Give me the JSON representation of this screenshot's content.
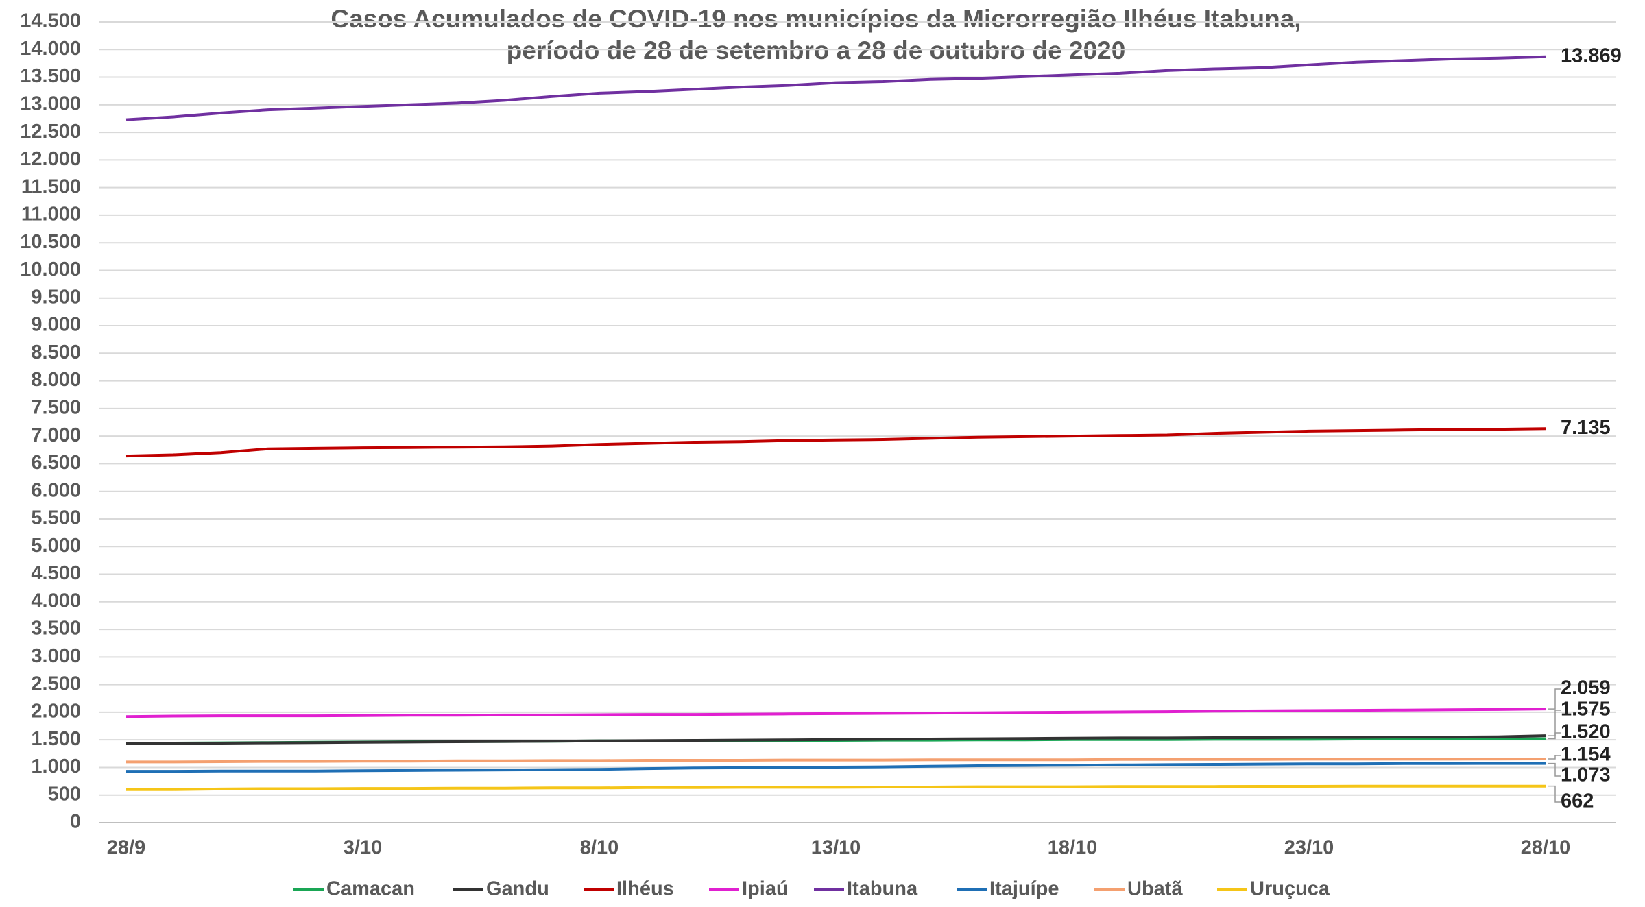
{
  "chart_data": {
    "type": "line",
    "title": "Casos Acumulados de COVID-19 nos municípios da Microrregião Ilhéus Itabuna,",
    "subtitle": "período de 28 de setembro a  28 de outubro de 2020",
    "categories": [
      "28/9",
      null,
      null,
      null,
      null,
      "3/10",
      null,
      null,
      null,
      null,
      "8/10",
      null,
      null,
      null,
      null,
      "13/10",
      null,
      null,
      null,
      null,
      "18/10",
      null,
      null,
      null,
      null,
      "23/10",
      null,
      null,
      null,
      null,
      "28/10"
    ],
    "ylim": [
      0,
      14500
    ],
    "yticks": [
      0,
      500,
      {
        "value": 1000,
        "label": "1.000"
      },
      {
        "value": 1500,
        "label": "1.500"
      },
      {
        "value": 2000,
        "label": "2.000"
      },
      {
        "value": 2500,
        "label": "2.500"
      },
      {
        "value": 3000,
        "label": "3.000"
      },
      {
        "value": 3500,
        "label": "3.500"
      },
      {
        "value": 4000,
        "label": "4.000"
      },
      {
        "value": 4500,
        "label": "4.500"
      },
      {
        "value": 5000,
        "label": "5.000"
      },
      {
        "value": 5500,
        "label": "5.500"
      },
      {
        "value": 6000,
        "label": "6.000"
      },
      {
        "value": 6500,
        "label": "6.500"
      },
      {
        "value": 7000,
        "label": "7.000"
      },
      {
        "value": 7500,
        "label": "7.500"
      },
      {
        "value": 8000,
        "label": "8.000"
      },
      {
        "value": 8500,
        "label": "8.500"
      },
      {
        "value": 9000,
        "label": "9.000"
      },
      {
        "value": 9500,
        "label": "9.500"
      },
      {
        "value": 10000,
        "label": "10.000"
      },
      {
        "value": 10500,
        "label": "10.500"
      },
      {
        "value": 11000,
        "label": "11.000"
      },
      {
        "value": 11500,
        "label": "11.500"
      },
      {
        "value": 12000,
        "label": "12.000"
      },
      {
        "value": 12500,
        "label": "12.500"
      },
      {
        "value": 13000,
        "label": "13.000"
      },
      {
        "value": 13500,
        "label": "13.500"
      },
      {
        "value": 14000,
        "label": "14.000"
      },
      {
        "value": 14500,
        "label": "14.500"
      }
    ],
    "grid": true,
    "legend": "bottom",
    "series": [
      {
        "name": "Camacan",
        "color": "#1aa655",
        "values": [
          1440,
          1440,
          1445,
          1450,
          1455,
          1460,
          1465,
          1470,
          1470,
          1475,
          1480,
          1480,
          1485,
          1485,
          1490,
          1490,
          1495,
          1495,
          1500,
          1500,
          1505,
          1505,
          1505,
          1510,
          1510,
          1510,
          1515,
          1515,
          1515,
          1518,
          1520
        ],
        "value_labels": [
          null,
          null,
          null,
          null,
          null,
          null,
          null,
          null,
          null,
          null,
          null,
          null,
          null,
          null,
          null,
          null,
          null,
          null,
          null,
          null,
          null,
          null,
          null,
          null,
          null,
          null,
          null,
          null,
          null,
          null,
          "1.520"
        ]
      },
      {
        "name": "Gandu",
        "color": "#333333",
        "values": [
          1430,
          1435,
          1440,
          1445,
          1450,
          1455,
          1460,
          1465,
          1470,
          1475,
          1480,
          1485,
          1490,
          1495,
          1500,
          1505,
          1510,
          1515,
          1520,
          1525,
          1530,
          1535,
          1535,
          1540,
          1540,
          1545,
          1545,
          1550,
          1550,
          1555,
          1575
        ],
        "value_labels": [
          null,
          null,
          null,
          null,
          null,
          null,
          null,
          null,
          null,
          null,
          null,
          null,
          null,
          null,
          null,
          null,
          null,
          null,
          null,
          null,
          null,
          null,
          null,
          null,
          null,
          null,
          null,
          null,
          null,
          null,
          "1.575"
        ]
      },
      {
        "name": "Ilhéus",
        "color": "#c00000",
        "values": [
          6640,
          6660,
          6700,
          6770,
          6780,
          6790,
          6795,
          6800,
          6805,
          6820,
          6850,
          6870,
          6890,
          6900,
          6920,
          6930,
          6940,
          6960,
          6980,
          6990,
          7000,
          7010,
          7020,
          7050,
          7070,
          7090,
          7100,
          7110,
          7120,
          7125,
          7135
        ],
        "value_labels": [
          null,
          null,
          null,
          null,
          null,
          null,
          null,
          null,
          null,
          null,
          null,
          null,
          null,
          null,
          null,
          null,
          null,
          null,
          null,
          null,
          null,
          null,
          null,
          null,
          null,
          null,
          null,
          null,
          null,
          null,
          "7.135"
        ]
      },
      {
        "name": "Ipiaú",
        "color": "#e020d0",
        "values": [
          1920,
          1930,
          1935,
          1935,
          1935,
          1940,
          1945,
          1945,
          1950,
          1950,
          1955,
          1960,
          1960,
          1965,
          1970,
          1975,
          1980,
          1985,
          1990,
          1995,
          2000,
          2005,
          2010,
          2020,
          2025,
          2030,
          2035,
          2040,
          2045,
          2050,
          2059
        ],
        "value_labels": [
          null,
          null,
          null,
          null,
          null,
          null,
          null,
          null,
          null,
          null,
          null,
          null,
          null,
          null,
          null,
          null,
          null,
          null,
          null,
          null,
          null,
          null,
          null,
          null,
          null,
          null,
          null,
          null,
          null,
          null,
          "2.059"
        ]
      },
      {
        "name": "Itabuna",
        "color": "#7030a0",
        "values": [
          12730,
          12780,
          12850,
          12910,
          12940,
          12970,
          13000,
          13030,
          13080,
          13150,
          13210,
          13240,
          13280,
          13320,
          13350,
          13400,
          13420,
          13460,
          13480,
          13510,
          13540,
          13570,
          13620,
          13650,
          13670,
          13720,
          13770,
          13800,
          13830,
          13845,
          13869
        ],
        "value_labels": [
          null,
          null,
          null,
          null,
          null,
          null,
          null,
          null,
          null,
          null,
          null,
          null,
          null,
          null,
          null,
          null,
          null,
          null,
          null,
          null,
          null,
          null,
          null,
          null,
          null,
          null,
          null,
          null,
          null,
          null,
          "13.869"
        ]
      },
      {
        "name": "Itajuípe",
        "color": "#1f6fb5",
        "values": [
          930,
          930,
          935,
          935,
          935,
          940,
          945,
          950,
          955,
          960,
          965,
          980,
          990,
          995,
          1000,
          1005,
          1010,
          1020,
          1030,
          1035,
          1040,
          1045,
          1050,
          1055,
          1060,
          1065,
          1065,
          1070,
          1070,
          1072,
          1073
        ],
        "value_labels": [
          null,
          null,
          null,
          null,
          null,
          null,
          null,
          null,
          null,
          null,
          null,
          null,
          null,
          null,
          null,
          null,
          null,
          null,
          null,
          null,
          null,
          null,
          null,
          null,
          null,
          null,
          null,
          null,
          null,
          null,
          "1.073"
        ]
      },
      {
        "name": "Ubatã",
        "color": "#f4a070",
        "values": [
          1100,
          1100,
          1105,
          1110,
          1110,
          1115,
          1115,
          1120,
          1120,
          1125,
          1125,
          1130,
          1130,
          1130,
          1135,
          1135,
          1135,
          1140,
          1140,
          1140,
          1140,
          1145,
          1145,
          1145,
          1145,
          1150,
          1150,
          1150,
          1150,
          1152,
          1154
        ],
        "value_labels": [
          null,
          null,
          null,
          null,
          null,
          null,
          null,
          null,
          null,
          null,
          null,
          null,
          null,
          null,
          null,
          null,
          null,
          null,
          null,
          null,
          null,
          null,
          null,
          null,
          null,
          null,
          null,
          null,
          null,
          null,
          "1.154"
        ]
      },
      {
        "name": "Uruçuca",
        "color": "#f5c518",
        "values": [
          600,
          600,
          610,
          615,
          615,
          620,
          620,
          625,
          625,
          630,
          630,
          635,
          635,
          640,
          640,
          640,
          645,
          645,
          650,
          650,
          650,
          655,
          655,
          655,
          658,
          658,
          660,
          660,
          660,
          661,
          662
        ],
        "value_labels": [
          null,
          null,
          null,
          null,
          null,
          null,
          null,
          null,
          null,
          null,
          null,
          null,
          null,
          null,
          null,
          null,
          null,
          null,
          null,
          null,
          null,
          null,
          null,
          null,
          null,
          null,
          null,
          null,
          null,
          null,
          "662"
        ]
      }
    ]
  }
}
